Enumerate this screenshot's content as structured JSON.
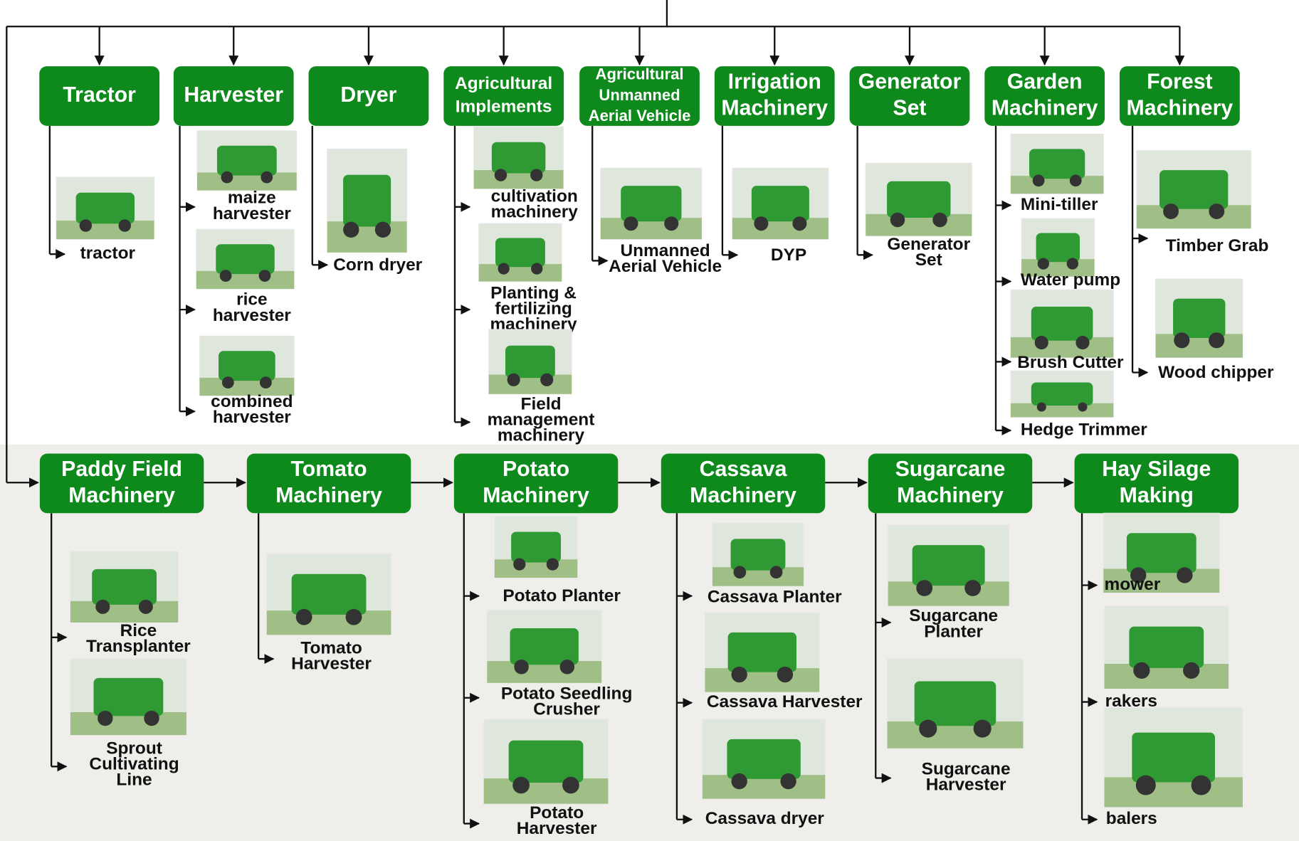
{
  "top_row": [
    {
      "label": [
        "Tractor"
      ],
      "items": [
        {
          "label": [
            "tractor"
          ]
        }
      ]
    },
    {
      "label": [
        "Harvester"
      ],
      "items": [
        {
          "label": [
            "maize",
            "harvester"
          ]
        },
        {
          "label": [
            "rice",
            "harvester"
          ]
        },
        {
          "label": [
            "combined",
            "harvester"
          ]
        }
      ]
    },
    {
      "label": [
        "Dryer"
      ],
      "items": [
        {
          "label": [
            "Corn dryer"
          ]
        }
      ]
    },
    {
      "label": [
        "Agricultural",
        "Implements"
      ],
      "items": [
        {
          "label": [
            "cultivation",
            "machinery"
          ]
        },
        {
          "label": [
            "Planting  &",
            "fertilizing",
            "machinery"
          ]
        },
        {
          "label": [
            "Field",
            "management",
            "machinery"
          ]
        }
      ]
    },
    {
      "label": [
        "Agricultural",
        "Unmanned",
        "Aerial Vehicle"
      ],
      "items": [
        {
          "label": [
            "Unmanned",
            "Aerial Vehicle"
          ]
        }
      ]
    },
    {
      "label": [
        "Irrigation",
        "Machinery"
      ],
      "items": [
        {
          "label": [
            "DYP"
          ]
        }
      ]
    },
    {
      "label": [
        "Generator",
        "Set"
      ],
      "items": [
        {
          "label": [
            "Generator",
            "Set"
          ]
        }
      ]
    },
    {
      "label": [
        "Garden",
        "Machinery"
      ],
      "items": [
        {
          "label": [
            "Mini-tiller"
          ]
        },
        {
          "label": [
            "Water pump"
          ]
        },
        {
          "label": [
            "Brush Cutter"
          ]
        },
        {
          "label": [
            "Hedge Trimmer"
          ]
        }
      ]
    },
    {
      "label": [
        "Forest",
        "Machinery"
      ],
      "items": [
        {
          "label": [
            "Timber Grab"
          ]
        },
        {
          "label": [
            "Wood chipper"
          ]
        }
      ]
    }
  ],
  "bottom_row": [
    {
      "label": [
        "Paddy Field",
        "Machinery"
      ],
      "items": [
        {
          "label": [
            "Rice",
            "Transplanter"
          ]
        },
        {
          "label": [
            "Sprout",
            "Cultivating",
            "Line"
          ]
        }
      ]
    },
    {
      "label": [
        "Tomato",
        "Machinery"
      ],
      "items": [
        {
          "label": [
            "Tomato",
            "Harvester"
          ]
        }
      ]
    },
    {
      "label": [
        "Potato",
        "Machinery"
      ],
      "items": [
        {
          "label": [
            "Potato Planter"
          ]
        },
        {
          "label": [
            "Potato Seedling",
            "Crusher"
          ]
        },
        {
          "label": [
            "Potato",
            "Harvester"
          ]
        }
      ]
    },
    {
      "label": [
        "Cassava",
        "Machinery"
      ],
      "items": [
        {
          "label": [
            "Cassava Planter"
          ]
        },
        {
          "label": [
            "Cassava Harvester"
          ]
        },
        {
          "label": [
            "Cassava dryer"
          ]
        }
      ]
    },
    {
      "label": [
        "Sugarcane",
        "Machinery"
      ],
      "items": [
        {
          "label": [
            "Sugarcane",
            "Planter"
          ]
        },
        {
          "label": [
            "Sugarcane",
            "Harvester"
          ]
        }
      ]
    },
    {
      "label": [
        "Hay Silage",
        "Making"
      ],
      "items": [
        {
          "label": [
            "mower"
          ]
        },
        {
          "label": [
            "rakers"
          ]
        },
        {
          "label": [
            "balers"
          ]
        }
      ]
    }
  ]
}
